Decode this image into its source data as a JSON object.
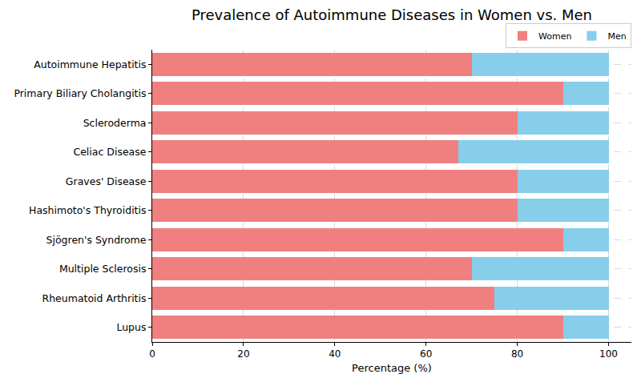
{
  "chart_data": {
    "type": "bar",
    "title": "Prevalence of Autoimmune Diseases in Women vs. Men",
    "x_label": "Percentage (%)",
    "orientation": "horizontal",
    "stacked": true,
    "categories": [
      "Lupus",
      "Rheumatoid Arthritis",
      "Multiple Sclerosis",
      "Sjögren's Syndrome",
      "Hashimoto's Thyroiditis",
      "Graves' Disease",
      "Celiac Disease",
      "Scleroderma",
      "Primary Biliary Cholangitis",
      "Autoimmune Hepatitis"
    ],
    "series": [
      {
        "name": "Women",
        "color": "#f08080",
        "values": [
          90,
          75,
          70,
          90,
          80,
          80,
          67,
          80,
          90,
          70
        ]
      },
      {
        "name": "Men",
        "color": "#87ceeb",
        "values": [
          10,
          25,
          30,
          10,
          20,
          20,
          33,
          20,
          10,
          30
        ]
      }
    ],
    "xlim": [
      0,
      105
    ],
    "xticks": [
      0,
      20,
      40,
      60,
      80,
      100
    ],
    "grid": true,
    "legend": "upper right"
  }
}
